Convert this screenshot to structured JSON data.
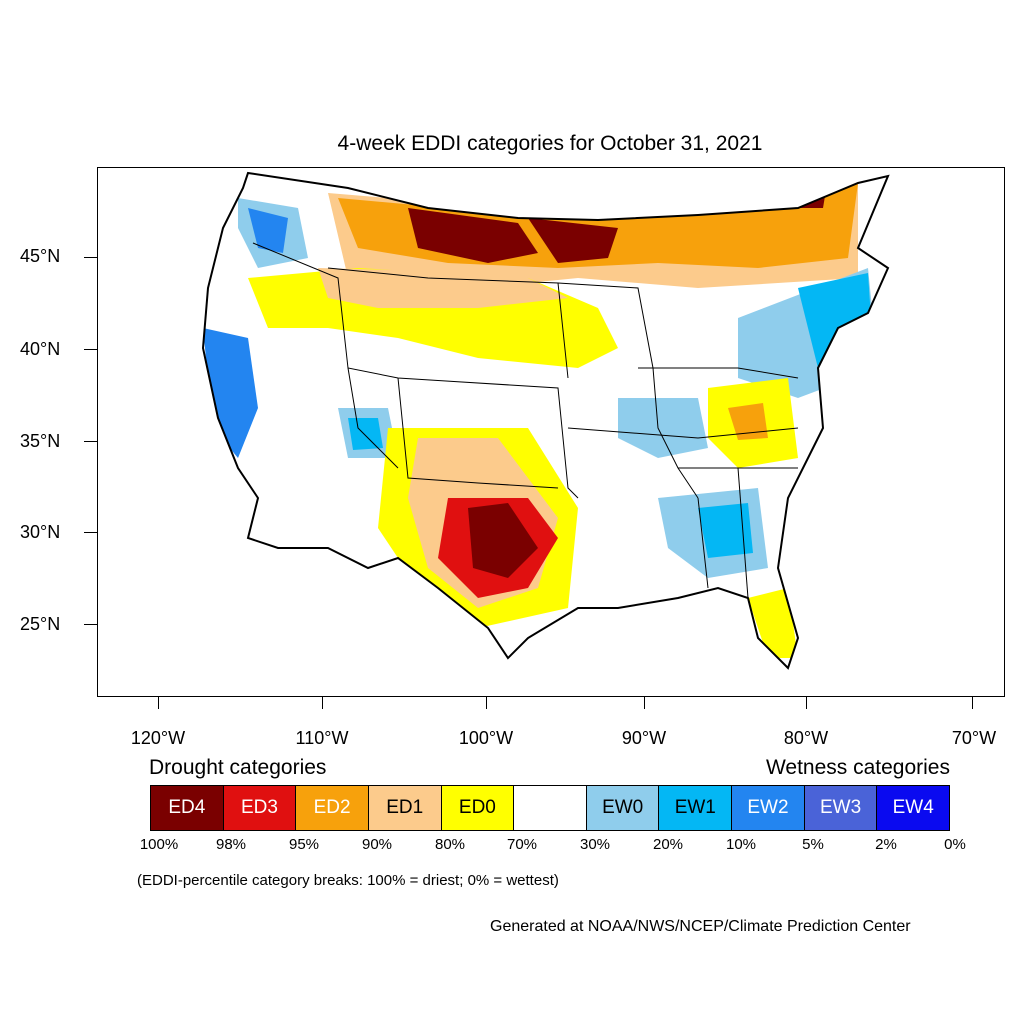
{
  "map": {
    "title": "4-week EDDI categories for October 31, 2021",
    "latitude_labels": [
      "45°N",
      "40°N",
      "35°N",
      "30°N",
      "25°N"
    ],
    "longitude_labels": [
      "120°W",
      "110°W",
      "100°W",
      "90°W",
      "80°W",
      "70°W"
    ]
  },
  "legend": {
    "drought_heading": "Drought categories",
    "wetness_heading": "Wetness categories",
    "categories": [
      {
        "label": "ED4",
        "color": "#7a0000",
        "text_color": "#ffffff"
      },
      {
        "label": "ED3",
        "color": "#e01010",
        "text_color": "#ffffff"
      },
      {
        "label": "ED2",
        "color": "#f7a10c",
        "text_color": "#ffffff"
      },
      {
        "label": "ED1",
        "color": "#fccb8c",
        "text_color": "#000000"
      },
      {
        "label": "ED0",
        "color": "#ffff00",
        "text_color": "#000000"
      },
      {
        "label": "",
        "color": "#ffffff",
        "text_color": "#000000"
      },
      {
        "label": "EW0",
        "color": "#8fcdec",
        "text_color": "#000000"
      },
      {
        "label": "EW1",
        "color": "#04b7f4",
        "text_color": "#000000"
      },
      {
        "label": "EW2",
        "color": "#2385f0",
        "text_color": "#ffffff"
      },
      {
        "label": "EW3",
        "color": "#4a63d8",
        "text_color": "#ffffff"
      },
      {
        "label": "EW4",
        "color": "#0a0af0",
        "text_color": "#ffffff"
      }
    ],
    "percentile_breaks": [
      "100%",
      "98%",
      "95%",
      "90%",
      "80%",
      "70%",
      "30%",
      "20%",
      "10%",
      "5%",
      "2%",
      "0%"
    ],
    "break_note": "(EDDI-percentile category breaks: 100% = driest; 0% = wettest)"
  },
  "credit": "Generated at NOAA/NWS/NCEP/Climate Prediction Center"
}
